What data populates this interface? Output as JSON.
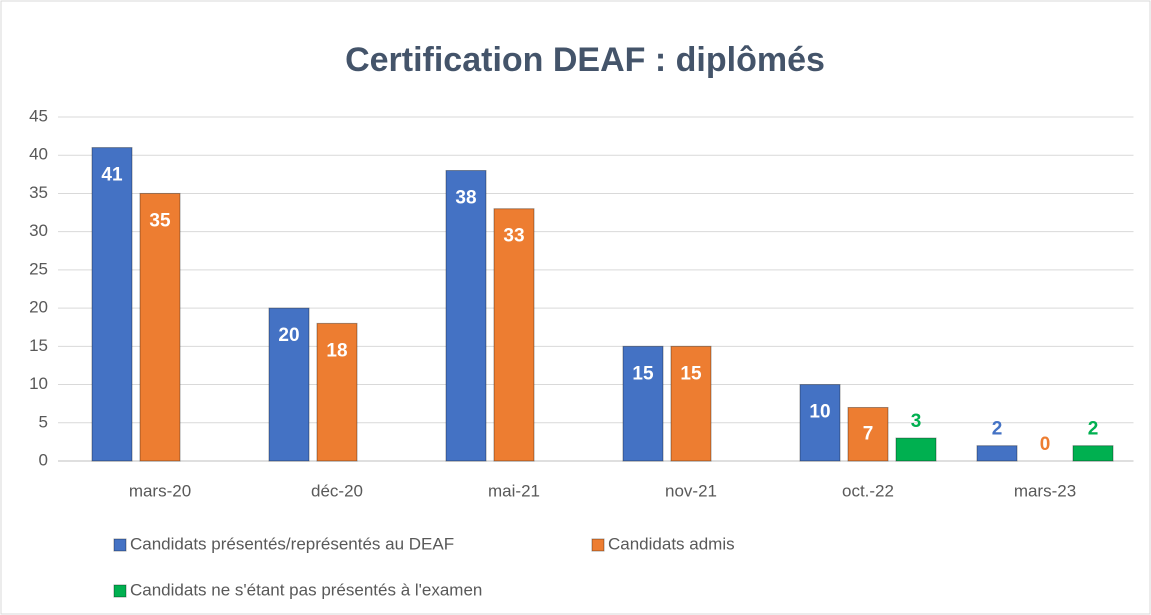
{
  "chart_data": {
    "type": "bar",
    "title": "Certification DEAF : diplômés",
    "categories": [
      "mars-20",
      "déc-20",
      "mai-21",
      "nov-21",
      "oct.-22",
      "mars-23"
    ],
    "series": [
      {
        "name": "Candidats présentés/représentés au DEAF",
        "color": "#4472c4",
        "values": [
          41,
          20,
          38,
          15,
          10,
          2
        ]
      },
      {
        "name": "Candidats admis",
        "color": "#ed7d31",
        "values": [
          35,
          18,
          33,
          15,
          7,
          0
        ]
      },
      {
        "name": "Candidats ne s'étant pas présentés à l'examen",
        "color": "#00b050",
        "values": [
          null,
          null,
          null,
          null,
          3,
          2
        ]
      }
    ],
    "ylim": [
      0,
      45
    ],
    "yticks": [
      0,
      5,
      10,
      15,
      20,
      25,
      30,
      35,
      40,
      45
    ],
    "grid": true,
    "legend": "bottom"
  }
}
